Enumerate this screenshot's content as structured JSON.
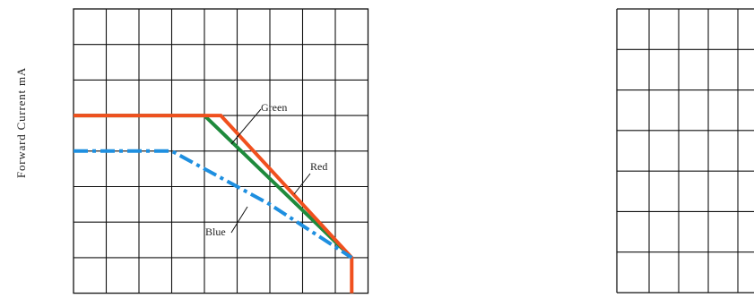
{
  "chart_data": [
    {
      "type": "line",
      "ylabel": "Forward Current mA",
      "grid": true,
      "x_divisions": 9,
      "y_divisions": 8,
      "series": [
        {
          "name": "Green",
          "color": "#1e8a3c",
          "style": "solid",
          "points": [
            [
              0,
              5
            ],
            [
              4.0,
              5
            ],
            [
              8.5,
              1.0
            ]
          ]
        },
        {
          "name": "Red",
          "color": "#f0501e",
          "style": "solid",
          "points": [
            [
              0,
              5
            ],
            [
              4.5,
              5
            ],
            [
              8.5,
              1.0
            ],
            [
              8.5,
              0
            ]
          ]
        },
        {
          "name": "Blue",
          "color": "#1e8fe0",
          "style": "dashdot",
          "points": [
            [
              0,
              4
            ],
            [
              3.0,
              4
            ],
            [
              5.0,
              3.0
            ],
            [
              6.0,
              2.5
            ],
            [
              8.5,
              1.0
            ]
          ]
        }
      ],
      "annotations": [
        {
          "text": "Green",
          "series": "Green"
        },
        {
          "text": "Red",
          "series": "Red"
        },
        {
          "text": "Blue",
          "series": "Blue"
        }
      ]
    },
    {
      "type": "line",
      "grid": true,
      "partial": true
    }
  ]
}
